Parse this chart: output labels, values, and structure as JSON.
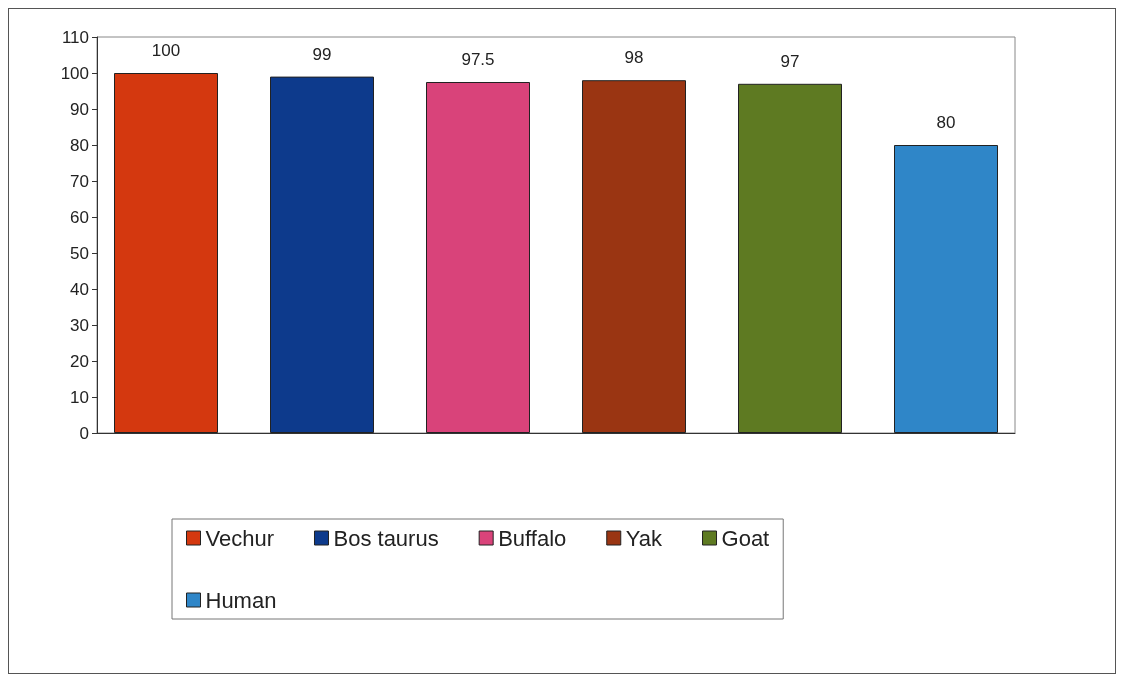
{
  "chart_data": {
    "type": "bar",
    "categories": [
      null
    ],
    "series": [
      {
        "name": "Vechur",
        "color": "#d4380f",
        "values": [
          100
        ]
      },
      {
        "name": "Bos taurus",
        "color": "#0d3a8c",
        "values": [
          99
        ]
      },
      {
        "name": "Buffalo",
        "color": "#d9437a",
        "values": [
          97.5
        ]
      },
      {
        "name": "Yak",
        "color": "#9a3512",
        "values": [
          98
        ]
      },
      {
        "name": "Goat",
        "color": "#5e7a22",
        "values": [
          97
        ]
      },
      {
        "name": "Human",
        "color": "#2f86c8",
        "values": [
          80
        ]
      }
    ],
    "ylim": [
      0,
      110
    ],
    "yticks": [
      0,
      10,
      20,
      30,
      40,
      50,
      60,
      70,
      80,
      90,
      100,
      110
    ],
    "grid": false,
    "legend": "bottom",
    "data_labels": true
  }
}
